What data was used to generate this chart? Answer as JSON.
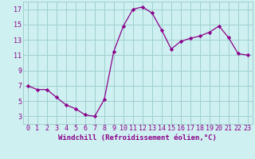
{
  "x": [
    0,
    1,
    2,
    3,
    4,
    5,
    6,
    7,
    8,
    9,
    10,
    11,
    12,
    13,
    14,
    15,
    16,
    17,
    18,
    19,
    20,
    21,
    22,
    23
  ],
  "y": [
    7.0,
    6.5,
    6.5,
    5.5,
    4.5,
    4.0,
    3.2,
    3.0,
    5.2,
    11.5,
    14.8,
    17.0,
    17.3,
    16.5,
    14.3,
    11.8,
    12.8,
    13.2,
    13.5,
    14.0,
    14.8,
    13.3,
    11.2,
    11.0
  ],
  "line_color": "#8b008b",
  "marker": "D",
  "marker_size": 2.2,
  "bg_color": "#cef0f0",
  "grid_color": "#a0d0d0",
  "xlabel": "Windchill (Refroidissement éolien,°C)",
  "xlim": [
    -0.5,
    23.5
  ],
  "ylim": [
    2,
    18
  ],
  "xticks": [
    0,
    1,
    2,
    3,
    4,
    5,
    6,
    7,
    8,
    9,
    10,
    11,
    12,
    13,
    14,
    15,
    16,
    17,
    18,
    19,
    20,
    21,
    22,
    23
  ],
  "yticks": [
    3,
    5,
    7,
    9,
    11,
    13,
    15,
    17
  ],
  "xlabel_fontsize": 6.5,
  "tick_fontsize": 6.0,
  "linewidth": 0.9
}
